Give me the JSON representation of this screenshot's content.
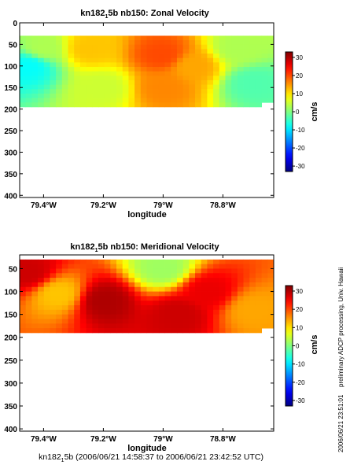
{
  "chart_data": [
    {
      "type": "heatmap",
      "title_parts": [
        "kn182",
        "1",
        "5b nb150: Zonal Velocity"
      ],
      "xlabel": "longitude",
      "ylabel": "",
      "x_ticks": [
        "79.4°W",
        "79.2°W",
        "79°W",
        "78.8°W"
      ],
      "x_tick_values": [
        -79.4,
        -79.2,
        -79.0,
        -78.8
      ],
      "xlim": [
        -79.48,
        -78.63
      ],
      "y_ticks": [
        "0",
        "50",
        "100",
        "150",
        "200",
        "250",
        "300",
        "350",
        "400"
      ],
      "ylim": [
        405,
        0
      ],
      "y_reversed": true,
      "colorbar": {
        "label": "cm/s",
        "ticks": [
          "30",
          "20",
          "10",
          "0",
          "-10",
          "-20",
          "-30"
        ],
        "range": [
          -33,
          33
        ]
      },
      "data_depth_range": [
        30,
        195
      ],
      "field": {
        "description": "zonal velocity mostly between about -10 and +20 cm/s",
        "sample_points": [
          {
            "lon": -79.45,
            "depth": 100,
            "value": -8
          },
          {
            "lon": -79.4,
            "depth": 60,
            "value": 3
          },
          {
            "lon": -79.25,
            "depth": 60,
            "value": 12
          },
          {
            "lon": -79.2,
            "depth": 150,
            "value": 5
          },
          {
            "lon": -79.0,
            "depth": 75,
            "value": 20
          },
          {
            "lon": -79.0,
            "depth": 150,
            "value": 16
          },
          {
            "lon": -78.9,
            "depth": 100,
            "value": 14
          },
          {
            "lon": -78.75,
            "depth": 60,
            "value": 3
          },
          {
            "lon": -78.7,
            "depth": 140,
            "value": -3
          }
        ]
      }
    },
    {
      "type": "heatmap",
      "title_parts": [
        "kn182",
        "1",
        "5b nb150: Meridional Velocity"
      ],
      "xlabel": "longitude",
      "ylabel": "",
      "x_ticks": [
        "79.4°W",
        "79.2°W",
        "79°W",
        "78.8°W"
      ],
      "x_tick_values": [
        -79.4,
        -79.2,
        -79.0,
        -78.8
      ],
      "xlim": [
        -79.48,
        -78.63
      ],
      "y_ticks": [
        "50",
        "100",
        "150",
        "200",
        "250",
        "300",
        "350",
        "400"
      ],
      "ylim": [
        405,
        20
      ],
      "y_reversed": true,
      "colorbar": {
        "label": "cm/s",
        "ticks": [
          "30",
          "20",
          "10",
          "0",
          "-10",
          "-20",
          "-30"
        ],
        "range": [
          -33,
          33
        ]
      },
      "data_depth_range": [
        30,
        190
      ],
      "field": {
        "description": "meridional velocity mostly between about +10 and +32 cm/s",
        "sample_points": [
          {
            "lon": -79.45,
            "depth": 60,
            "value": 28
          },
          {
            "lon": -79.35,
            "depth": 105,
            "value": 12
          },
          {
            "lon": -79.2,
            "depth": 120,
            "value": 30
          },
          {
            "lon": -79.0,
            "depth": 50,
            "value": 2
          },
          {
            "lon": -78.95,
            "depth": 150,
            "value": 28
          },
          {
            "lon": -78.85,
            "depth": 100,
            "value": 26
          },
          {
            "lon": -78.7,
            "depth": 140,
            "value": 14
          }
        ]
      }
    }
  ],
  "footer": {
    "prefix": "kn182",
    "sub": "1",
    "rest": "5b (2006/06/21 14:58:37 to 2006/06/21 23:42:52 UTC)"
  },
  "side_text": {
    "processing": "preliminary ADCP processing,  Univ. Hawaii",
    "timestamp": "2006/06/21 23:51:01"
  }
}
